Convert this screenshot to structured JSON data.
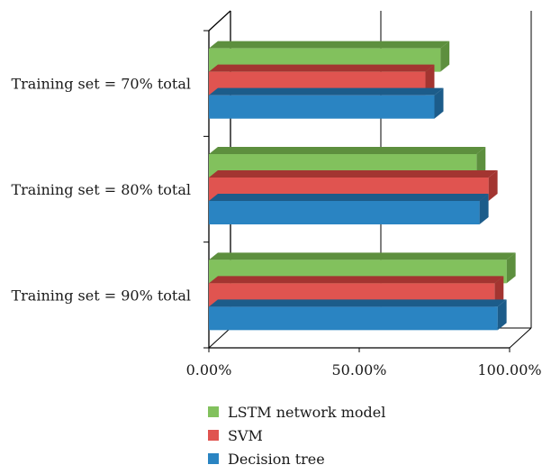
{
  "chart_data": {
    "type": "bar",
    "orientation": "horizontal",
    "style": "3d",
    "categories": [
      "Training set = 70% total",
      "Training set = 80% total",
      "Training set = 90% total"
    ],
    "series": [
      {
        "name": "LSTM network model",
        "values": [
          0.77,
          0.89,
          0.99
        ],
        "color": "#82c15d",
        "side": "#5d8f3e"
      },
      {
        "name": "SVM",
        "values": [
          0.72,
          0.93,
          0.95
        ],
        "color": "#e05450",
        "side": "#a33531"
      },
      {
        "name": "Decision tree",
        "values": [
          0.75,
          0.9,
          0.96
        ],
        "color": "#2a84c2",
        "side": "#1c5c8a"
      }
    ],
    "xlim": [
      0,
      1
    ],
    "xticks": [
      "0.00%",
      "50.00%",
      "100.00%"
    ],
    "grid": true,
    "legend_position": "bottom"
  }
}
